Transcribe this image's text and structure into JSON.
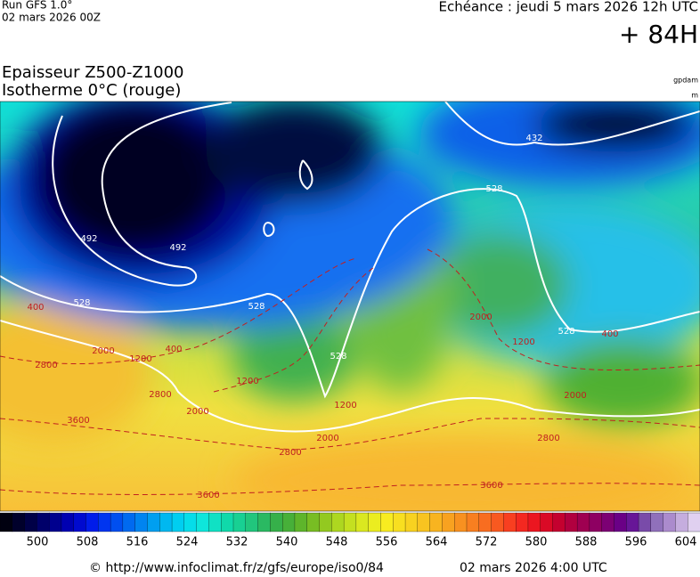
{
  "header": {
    "run": "Run GFS 1.0°",
    "run_date": "02 mars 2026 00Z",
    "forecast": "Echéance : jeudi 5 mars 2026 12h UTC",
    "lead": "+ 84H",
    "title_line1": "Epaisseur Z500-Z1000",
    "title_line2": "Isotherme 0°C (rouge)",
    "unit_thickness": "gpdam",
    "unit_height": "m"
  },
  "map": {
    "contour_labels": [
      "492",
      "492",
      "432",
      "528",
      "528",
      "528",
      "528",
      "528",
      "400",
      "400",
      "2000",
      "1200",
      "2800",
      "2000",
      "3600",
      "1200",
      "1200",
      "2000",
      "2800",
      "3600",
      "2800",
      "2000",
      "3600",
      "2800",
      "1200",
      "400",
      "2000"
    ]
  },
  "colorbar": {
    "labels": [
      "500",
      "508",
      "516",
      "524",
      "532",
      "540",
      "548",
      "556",
      "564",
      "572",
      "580",
      "588",
      "596",
      "604"
    ]
  },
  "footer": {
    "source": "© http://www.infoclimat.fr/z/gfs/europe/iso0/84",
    "issued": "02 mars 2026  4:00 UTC"
  }
}
